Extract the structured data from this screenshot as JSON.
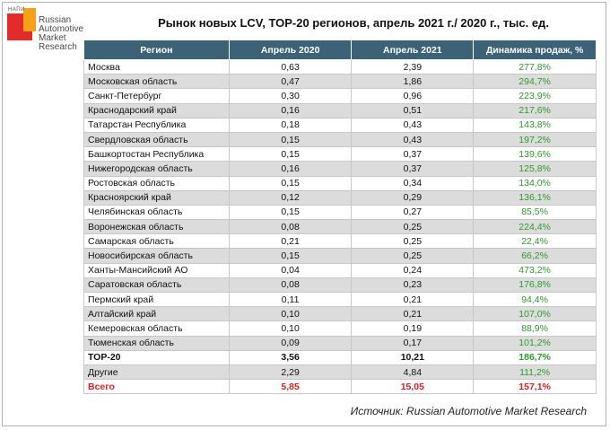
{
  "logo": {
    "small_text": "НАПИ",
    "line1": "Russian",
    "line2": "Automotive",
    "line3": "Market",
    "line4": "Research"
  },
  "title": "Рынок новых LCV, ТОР-20 регионов, апрель 2021 г./ 2020 г., тыс. ед.",
  "headers": [
    "Регион",
    "Апрель 2020",
    "Апрель 2021",
    "Динамика продаж, %"
  ],
  "rows": [
    [
      "Москва",
      "0,63",
      "2,39",
      "277,8%"
    ],
    [
      "Московская область",
      "0,47",
      "1,86",
      "294,7%"
    ],
    [
      "Санкт-Петербург",
      "0,30",
      "0,96",
      "223,9%"
    ],
    [
      "Краснодарский край",
      "0,16",
      "0,51",
      "217,6%"
    ],
    [
      "Татарстан Республика",
      "0,18",
      "0,43",
      "143,8%"
    ],
    [
      "Свердловская область",
      "0,15",
      "0,43",
      "197,2%"
    ],
    [
      "Башкортостан Республика",
      "0,15",
      "0,37",
      "139,6%"
    ],
    [
      "Нижегородская область",
      "0,16",
      "0,37",
      "125,8%"
    ],
    [
      "Ростовская область",
      "0,15",
      "0,34",
      "134,0%"
    ],
    [
      "Красноярский край",
      "0,12",
      "0,29",
      "136,1%"
    ],
    [
      "Челябинская область",
      "0,15",
      "0,27",
      "85,5%"
    ],
    [
      "Воронежская область",
      "0,08",
      "0,25",
      "224,4%"
    ],
    [
      "Самарская область",
      "0,21",
      "0,25",
      "22,4%"
    ],
    [
      "Новосибирская область",
      "0,15",
      "0,25",
      "66,2%"
    ],
    [
      "Ханты-Мансийский АО",
      "0,04",
      "0,24",
      "473,2%"
    ],
    [
      "Саратовская область",
      "0,08",
      "0,23",
      "176,8%"
    ],
    [
      "Пермский край",
      "0,11",
      "0,21",
      "94,4%"
    ],
    [
      "Алтайский край",
      "0,10",
      "0,21",
      "107,0%"
    ],
    [
      "Кемеровская область",
      "0,10",
      "0,19",
      "88,9%"
    ],
    [
      "Тюменская область",
      "0,09",
      "0,17",
      "101,2%"
    ]
  ],
  "top20": [
    "ТОР-20",
    "3,56",
    "10,21",
    "186,7%"
  ],
  "other": [
    "Другие",
    "2,29",
    "4,84",
    "111,2%"
  ],
  "total": [
    "Всего",
    "5,85",
    "15,05",
    "157,1%"
  ],
  "source": "Источник: Russian Automotive Market Research",
  "colors": {
    "header_bg": "#3b6277",
    "growth": "#2e9a2e",
    "total": "#e02020"
  }
}
